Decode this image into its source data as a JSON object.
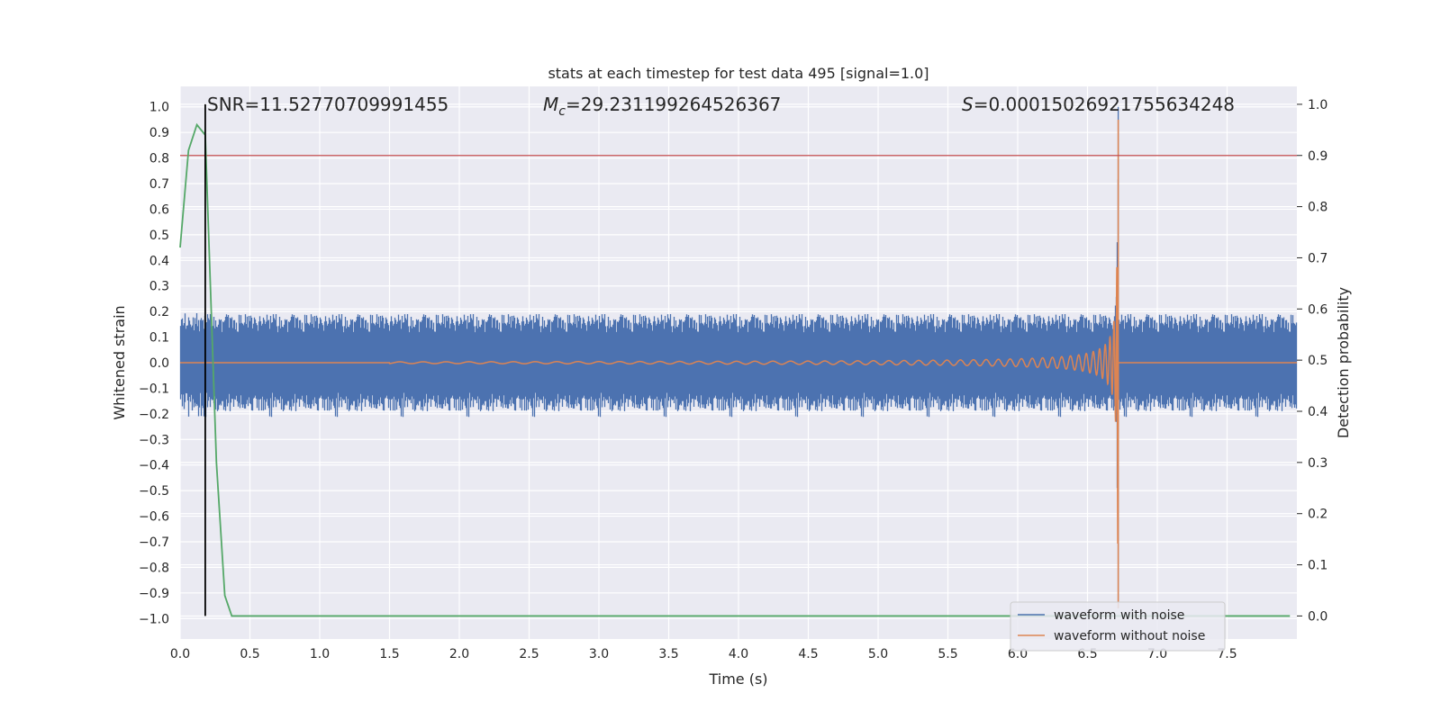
{
  "chart_data": {
    "type": "line",
    "title": "stats at each timestep for test data 495 [signal=1.0]",
    "xlabel": "Time (s)",
    "ylabel_left": "Whitened strain",
    "ylabel_right": "Detection probability",
    "xlim": [
      0.0,
      8.0
    ],
    "ylim_left": [
      -1.08,
      1.08
    ],
    "ylim_right": [
      -0.045,
      1.035
    ],
    "x_ticks": [
      0.0,
      0.5,
      1.0,
      1.5,
      2.0,
      2.5,
      3.0,
      3.5,
      4.0,
      4.5,
      5.0,
      5.5,
      6.0,
      6.5,
      7.0,
      7.5
    ],
    "x_tick_labels": [
      "0.0",
      "0.5",
      "1.0",
      "1.5",
      "2.0",
      "2.5",
      "3.0",
      "3.5",
      "4.0",
      "4.5",
      "5.0",
      "5.5",
      "6.0",
      "6.5",
      "7.0",
      "7.5"
    ],
    "y_left_ticks": [
      1.0,
      0.9,
      0.8,
      0.7,
      0.6,
      0.5,
      0.4,
      0.3,
      0.2,
      0.1,
      0.0,
      -0.1,
      -0.2,
      -0.3,
      -0.4,
      -0.5,
      -0.6,
      -0.7,
      -0.8,
      -0.9,
      -1.0
    ],
    "y_left_tick_labels": [
      "1.0",
      "0.9",
      "0.8",
      "0.7",
      "0.6",
      "0.5",
      "0.4",
      "0.3",
      "0.2",
      "0.1",
      "0.0",
      "−0.1",
      "−0.2",
      "−0.3",
      "−0.4",
      "−0.5",
      "−0.6",
      "−0.7",
      "−0.8",
      "−0.9",
      "−1.0"
    ],
    "y_right_ticks": [
      1.0,
      0.9,
      0.8,
      0.7,
      0.6,
      0.5,
      0.4,
      0.3,
      0.2,
      0.1,
      0.0
    ],
    "y_right_tick_labels": [
      "1.0",
      "0.9",
      "0.8",
      "0.7",
      "0.6",
      "0.5",
      "0.4",
      "0.3",
      "0.2",
      "0.1",
      "0.0"
    ],
    "grid": true,
    "legend_placement": "lower-right",
    "annotations": {
      "snr": "SNR=11.52770709991455",
      "mc_symbol": "M",
      "mc_subscript": "c",
      "mc_value": "=29.231199264526367",
      "s_symbol": "S",
      "s_value": "=0.00015026921755634248"
    },
    "threshold_line": {
      "axis": "right",
      "y": 0.9,
      "color": "#c44e52"
    },
    "detection_marker": {
      "x": 0.18,
      "y_range_right": [
        0.0,
        1.0
      ],
      "color": "#000000"
    },
    "series": [
      {
        "name": "waveform with noise",
        "axis": "left",
        "color": "#4c72b0",
        "kind": "noisy_chirp",
        "noise_band": [
          -0.19,
          0.19
        ],
        "merger_time": 6.72,
        "peak_amplitude": 1.0,
        "min_amplitude": -0.96
      },
      {
        "name": "waveform without noise",
        "axis": "left",
        "color": "#dd8452",
        "kind": "chirp",
        "merger_time": 6.72,
        "peak_amplitude": 0.95,
        "min_amplitude": -0.96,
        "start_time": 1.5
      },
      {
        "axis": "right",
        "color": "#55a868",
        "kind": "detection_probability",
        "x": [
          0.0,
          0.06,
          0.12,
          0.18,
          0.26,
          0.32,
          0.37,
          0.42,
          1.0,
          2.0,
          3.0,
          4.0,
          5.0,
          6.0,
          7.0,
          7.95
        ],
        "y": [
          0.72,
          0.91,
          0.96,
          0.94,
          0.3,
          0.04,
          0.0,
          0.0,
          0.0,
          0.0,
          0.0,
          0.0,
          0.0,
          0.0,
          0.0,
          0.0
        ]
      }
    ],
    "colors": {
      "background": "#eaeaf2",
      "grid": "#ffffff",
      "text": "#262626"
    }
  }
}
